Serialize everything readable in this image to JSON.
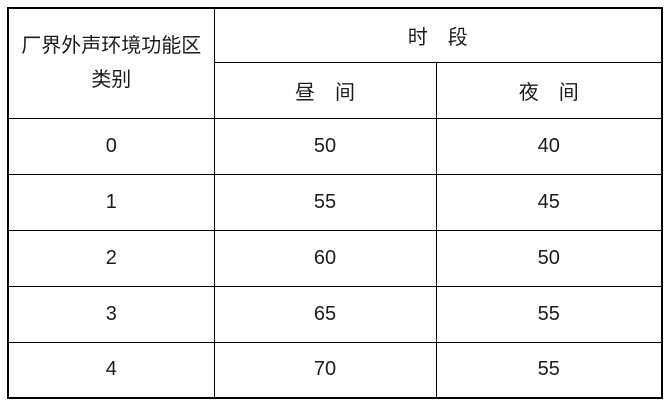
{
  "page": {
    "background_color": "#ffffff",
    "border_color": "#000000",
    "text_color": "#1c1c1c"
  },
  "table": {
    "header": {
      "category_label": "厂界外声环境功能区\n类别",
      "period_label": "时　段",
      "day_label": "昼　间",
      "night_label": "夜　间"
    },
    "rows": [
      {
        "category": "0",
        "day": "50",
        "night": "40"
      },
      {
        "category": "1",
        "day": "55",
        "night": "45"
      },
      {
        "category": "2",
        "day": "60",
        "night": "50"
      },
      {
        "category": "3",
        "day": "65",
        "night": "55"
      },
      {
        "category": "4",
        "day": "70",
        "night": "55"
      }
    ]
  }
}
